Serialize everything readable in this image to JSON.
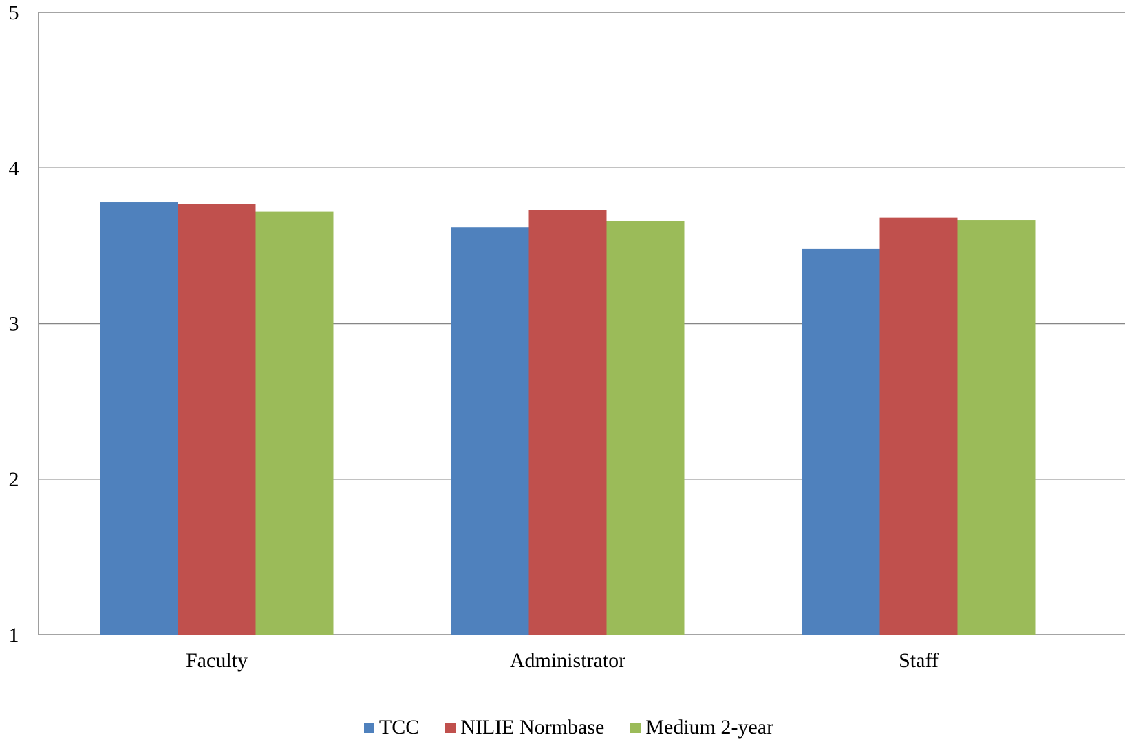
{
  "chart_data": {
    "type": "bar",
    "categories": [
      "Faculty",
      "Administrator",
      "Staff"
    ],
    "series": [
      {
        "name": "TCC",
        "color": "#4F81BD",
        "values": [
          3.78,
          3.62,
          3.48
        ]
      },
      {
        "name": "NILIE Normbase",
        "color": "#C0504D",
        "values": [
          3.77,
          3.73,
          3.68
        ]
      },
      {
        "name": "Medium 2-year",
        "color": "#9BBB59",
        "values": [
          3.72,
          3.66,
          3.665
        ]
      }
    ],
    "title": "",
    "xlabel": "",
    "ylabel": "",
    "ylim": [
      1,
      5
    ],
    "yticks": [
      "1",
      "2",
      "3",
      "4",
      "5"
    ],
    "grid": true,
    "legend_position": "bottom"
  }
}
